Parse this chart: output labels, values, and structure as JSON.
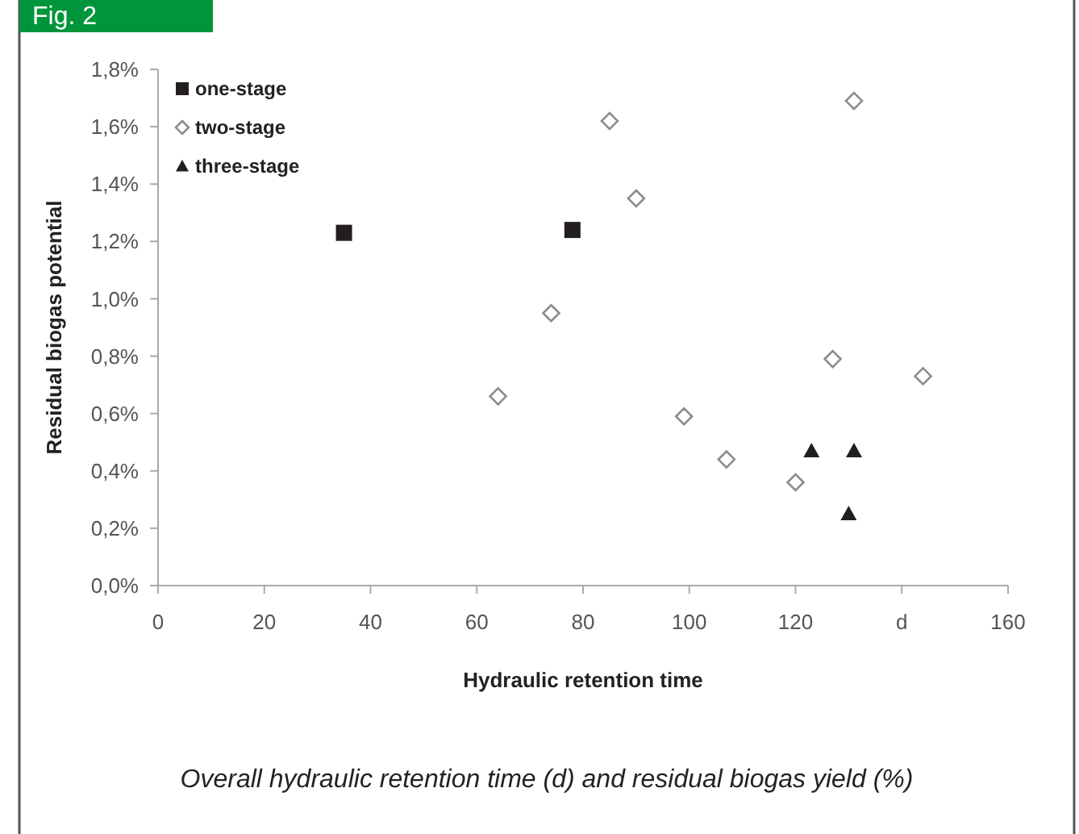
{
  "chart_data": {
    "type": "scatter",
    "title": "Fig. 2",
    "xlabel": "Hydraulic retention time",
    "ylabel": "Residual biogas potential",
    "annotations": [
      "Overall hydraulic retention time (d) and residual biogas yield (%)"
    ],
    "xlim": [
      0,
      160
    ],
    "xticks": [
      0,
      20,
      40,
      60,
      80,
      100,
      120,
      {
        "value": 140,
        "label": "d"
      },
      160
    ],
    "ylim": [
      0,
      1.8
    ],
    "yticks": [
      {
        "value": 0,
        "label": "0,0%"
      },
      {
        "value": 0.2,
        "label": "0,2%"
      },
      {
        "value": 0.4,
        "label": "0,4%"
      },
      {
        "value": 0.6,
        "label": "0,6%"
      },
      {
        "value": 0.8,
        "label": "0,8%"
      },
      {
        "value": 1.0,
        "label": "1,0%"
      },
      {
        "value": 1.2,
        "label": "1,2%"
      },
      {
        "value": 1.4,
        "label": "1,4%"
      },
      {
        "value": 1.6,
        "label": "1,6%"
      },
      {
        "value": 1.8,
        "label": "1,8%"
      }
    ],
    "grid": false,
    "legend": "top left",
    "series": [
      {
        "name": "one-stage",
        "color": "#231f20",
        "marker": "square",
        "x": [
          35,
          78
        ],
        "values": [
          1.23,
          1.24
        ]
      },
      {
        "name": "two-stage",
        "color": "#8c8c8c",
        "marker": "diamond",
        "x": [
          64,
          74,
          85,
          90,
          99,
          107,
          120,
          127,
          131,
          144
        ],
        "values": [
          0.66,
          0.95,
          1.62,
          1.35,
          0.59,
          0.44,
          0.36,
          0.79,
          1.69,
          0.73
        ]
      },
      {
        "name": "three-stage",
        "color": "#231f20",
        "marker": "triangle",
        "x": [
          123,
          131,
          130
        ],
        "values": [
          0.47,
          0.47,
          0.25
        ]
      }
    ]
  }
}
